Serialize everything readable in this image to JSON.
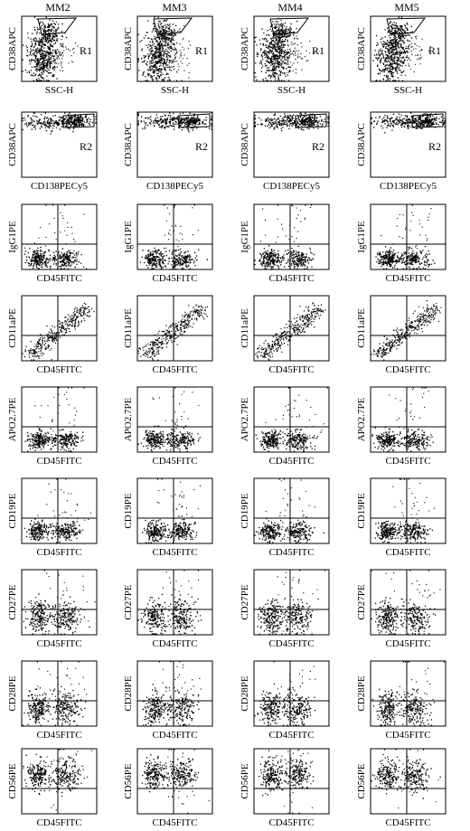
{
  "figure": {
    "columns": [
      "MM2",
      "MM3",
      "MM4",
      "MM5"
    ]
  },
  "chart_data": {
    "type": "scatter",
    "title": "",
    "columns": [
      "MM2",
      "MM3",
      "MM4",
      "MM5"
    ],
    "rows": [
      {
        "id": "row1",
        "xlabel": "SSC-H",
        "ylabel": "CD38APC",
        "gate_label": "R1",
        "kind": "gate_ssc",
        "quadrants": false
      },
      {
        "id": "row2",
        "xlabel": "CD138PECy5",
        "ylabel": "CD38APC",
        "gate_label": "R2",
        "kind": "gate_cd138",
        "quadrants": false
      },
      {
        "id": "row3",
        "xlabel": "CD45FITC",
        "ylabel": "IgG1PE",
        "kind": "quad_neg",
        "quadrants": true
      },
      {
        "id": "row4",
        "xlabel": "CD45FITC",
        "ylabel": "CD11aPE",
        "kind": "quad_diag",
        "quadrants": true
      },
      {
        "id": "row5",
        "xlabel": "CD45FITC",
        "ylabel": "APO2.7PE",
        "kind": "quad_low",
        "quadrants": true
      },
      {
        "id": "row6",
        "xlabel": "CD45FITC",
        "ylabel": "CD19PE",
        "kind": "quad_low",
        "quadrants": true
      },
      {
        "id": "row7",
        "xlabel": "CD45FITC",
        "ylabel": "CD27PE",
        "kind": "quad_mid",
        "quadrants": true
      },
      {
        "id": "row8",
        "xlabel": "CD45FITC",
        "ylabel": "CD28PE",
        "kind": "quad_mid",
        "quadrants": true
      },
      {
        "id": "row9",
        "xlabel": "CD45FITC",
        "ylabel": "CD56PE",
        "kind": "quad_high",
        "quadrants": true
      }
    ],
    "grid": false,
    "legend": "none"
  }
}
